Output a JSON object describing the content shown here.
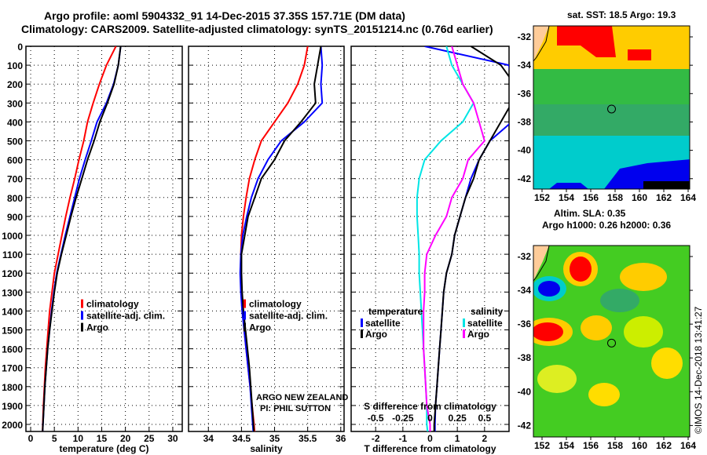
{
  "chart_data": [
    {
      "type": "line",
      "title": "Argo profile: aoml 5904332_91 14-Dec-2015 37.35S 157.71E (DM data)",
      "subtitle": "Climatology: CARS2009. Satellite-adjusted climatology: synTS_20151214.nc (0.76d earlier)",
      "xlabel": "temperature (deg C)",
      "xlim": [
        -1,
        32
      ],
      "ylim": [
        0,
        2070
      ],
      "y_inverted": true,
      "yticks": [
        0,
        100,
        200,
        300,
        400,
        500,
        600,
        700,
        800,
        900,
        1000,
        1100,
        1200,
        1300,
        1400,
        1500,
        1600,
        1700,
        1800,
        1900,
        2000
      ],
      "xticks": [
        0,
        5,
        10,
        15,
        20,
        25,
        30
      ],
      "grid": true,
      "legend_placement": "center-right",
      "depth": [
        0,
        100,
        200,
        300,
        400,
        500,
        600,
        700,
        800,
        900,
        1000,
        1100,
        1200,
        1300,
        1400,
        1500,
        1600,
        1700,
        1800,
        1900,
        2000,
        2050
      ],
      "series": [
        {
          "name": "climatology",
          "color": "#ff0000",
          "values": [
            18,
            16,
            14.5,
            13.2,
            12,
            11.2,
            10.2,
            9.3,
            8.3,
            7.4,
            6.6,
            5.8,
            5,
            4.5,
            4,
            3.7,
            3.4,
            3.1,
            2.9,
            2.7,
            2.55,
            2.5
          ]
        },
        {
          "name": "satellite-adj. clim.",
          "color": "#0000ff",
          "values": [
            19,
            18.5,
            17.5,
            16,
            14,
            12.8,
            11.5,
            10.3,
            9.3,
            8.3,
            7.3,
            6.4,
            5.5,
            4.9,
            4.4,
            4,
            3.6,
            3.3,
            3,
            2.8,
            2.6,
            2.5
          ]
        },
        {
          "name": "Argo",
          "color": "#000000",
          "values": [
            19,
            18.5,
            17.6,
            16.2,
            14.6,
            13.4,
            12,
            10.8,
            9.6,
            8.5,
            7.5,
            6.5,
            5.6,
            5,
            4.5,
            4,
            3.6,
            3.3,
            3,
            2.8,
            2.6,
            2.5
          ]
        }
      ]
    },
    {
      "type": "line",
      "xlabel": "salinity",
      "xlim": [
        33.7,
        36.05
      ],
      "xticks": [
        34,
        34.5,
        35,
        35.5,
        36
      ],
      "xtick_labels": [
        "34",
        "34.5",
        "35",
        "35.5",
        "36"
      ],
      "legend_placement": "center-right",
      "depth": [
        0,
        100,
        200,
        300,
        400,
        500,
        600,
        700,
        800,
        900,
        1000,
        1100,
        1200,
        1300,
        1400,
        1500,
        1600,
        1700,
        1800,
        1900,
        2000,
        2050
      ],
      "series": [
        {
          "name": "climatology",
          "color": "#ff0000",
          "values": [
            35.5,
            35.45,
            35.35,
            35.2,
            35.0,
            34.8,
            34.7,
            34.62,
            34.57,
            34.53,
            34.5,
            34.49,
            34.49,
            34.5,
            34.52,
            34.54,
            34.57,
            34.6,
            34.63,
            34.66,
            34.69,
            34.7
          ]
        },
        {
          "name": "satellite-adj. clim.",
          "color": "#0000ff",
          "values": [
            35.7,
            35.72,
            35.7,
            35.72,
            35.45,
            35.1,
            34.9,
            34.75,
            34.65,
            34.58,
            34.52,
            34.49,
            34.48,
            34.49,
            34.51,
            34.54,
            34.57,
            34.6,
            34.63,
            34.65,
            34.67,
            34.68
          ]
        },
        {
          "name": "Argo",
          "color": "#000000",
          "values": [
            35.7,
            35.65,
            35.6,
            35.62,
            35.4,
            35.15,
            35.0,
            34.8,
            34.7,
            34.6,
            34.55,
            34.5,
            34.5,
            34.51,
            34.53,
            34.56,
            34.59,
            34.62,
            34.64,
            34.66,
            34.68,
            34.69
          ]
        }
      ],
      "annotations": [
        "ARGO NEW ZEALAND",
        "PI: PHIL SUTTON"
      ]
    },
    {
      "type": "line",
      "xlabel": "T difference from climatology",
      "xlabel_top": "S difference from climatology",
      "xlim": [
        -2.9,
        2.9
      ],
      "xticks": [
        -2,
        -1,
        0,
        1,
        2
      ],
      "s_xlim": [
        -0.725,
        0.725
      ],
      "s_xticks": [
        -0.5,
        -0.25,
        0,
        0.25,
        0.5
      ],
      "s_xtick_labels": [
        "-0.5",
        "-0.25",
        "0",
        "0.25",
        "0.5"
      ],
      "legend_temperature_title": "temperature",
      "legend_salinity_title": "salinity",
      "depth": [
        0,
        100,
        200,
        300,
        400,
        500,
        600,
        700,
        800,
        900,
        1000,
        1100,
        1200,
        1300,
        1400,
        1500,
        1600,
        1700,
        1800,
        1900,
        2000,
        2050
      ],
      "series": [
        {
          "name": "satellite",
          "group": "temperature",
          "axis": "T",
          "color": "#0000ff",
          "values": [
            -0.2,
            2.9,
            3.0,
            3.0,
            3.0,
            2.2,
            1.8,
            1.5,
            1.3,
            1.1,
            0.9,
            0.8,
            0.6,
            0.5,
            0.45,
            0.4,
            0.35,
            0.3,
            0.25,
            0.2,
            0.18,
            0.18
          ]
        },
        {
          "name": "Argo",
          "group": "temperature",
          "axis": "T",
          "color": "#000000",
          "values": [
            1.5,
            2.6,
            3.1,
            3.0,
            2.6,
            2.2,
            1.8,
            1.6,
            1.3,
            1.1,
            0.9,
            0.8,
            0.6,
            0.5,
            0.45,
            0.4,
            0.35,
            0.3,
            0.25,
            0.2,
            0.15,
            0.15
          ]
        },
        {
          "name": "satellite",
          "group": "salinity",
          "axis": "S",
          "color": "#00e5e5",
          "values": [
            0.15,
            0.2,
            0.3,
            0.4,
            0.3,
            0.1,
            -0.05,
            -0.1,
            -0.12,
            -0.12,
            -0.11,
            -0.1,
            -0.1,
            -0.09,
            -0.08,
            -0.07,
            -0.06,
            -0.05,
            -0.04,
            -0.03,
            -0.03,
            -0.02
          ]
        },
        {
          "name": "Argo",
          "group": "salinity",
          "axis": "S",
          "color": "#ff00ff",
          "values": [
            0.2,
            0.25,
            0.3,
            0.4,
            0.45,
            0.5,
            0.35,
            0.3,
            0.2,
            0.15,
            0.05,
            -0.03,
            -0.05,
            -0.05,
            -0.06,
            -0.06,
            -0.06,
            -0.05,
            -0.04,
            -0.03,
            0,
            0
          ]
        }
      ]
    }
  ],
  "maps": {
    "sst": {
      "title": "sat. SST: 18.5 Argo: 19.3"
    },
    "sla": {
      "title1": "Altim. SLA: 0.35",
      "title2": "Argo h1000: 0.26 h2000: 0.36"
    },
    "lon_ticks": [
      "152",
      "154",
      "156",
      "158",
      "160",
      "162",
      "164"
    ],
    "lat_ticks": [
      "-32",
      "-34",
      "-36",
      "-38",
      "-40",
      "-42"
    ],
    "float_lon": 157.71,
    "float_lat": -37.35
  },
  "credit": "©IMOS 14-Dec-2018 13:41:27"
}
